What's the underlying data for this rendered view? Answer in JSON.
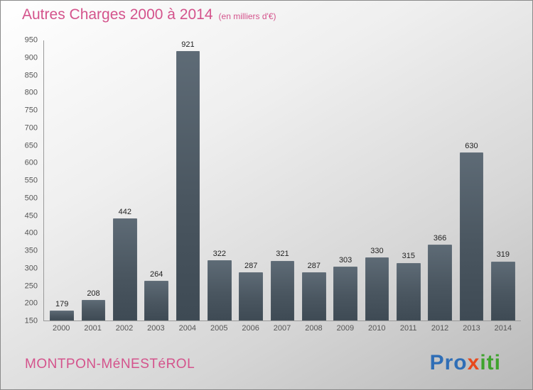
{
  "header": {
    "title": "Autres Charges 2000 à 2014",
    "subtitle": "(en milliers d'€)"
  },
  "footer": {
    "city_label": "MONTPON-MéNESTéROL",
    "logo": {
      "part1": "Pro",
      "part2": "x",
      "part3": "iti"
    }
  },
  "colors": {
    "title_pink": "#d4538c",
    "bar_top": "#5e6b76",
    "bar_bottom": "#3e4a54",
    "axis_text": "#555555",
    "logo_blue": "#2f6eb6",
    "logo_red": "#e8491d",
    "logo_green": "#3fa32e"
  },
  "chart_data": {
    "type": "bar",
    "title": "Autres Charges 2000 à 2014",
    "unit_note": "(en milliers d'€)",
    "categories": [
      "2000",
      "2001",
      "2002",
      "2003",
      "2004",
      "2005",
      "2006",
      "2007",
      "2008",
      "2009",
      "2010",
      "2011",
      "2012",
      "2013",
      "2014"
    ],
    "values": [
      179,
      208,
      442,
      264,
      921,
      322,
      287,
      321,
      287,
      303,
      330,
      315,
      366,
      630,
      319
    ],
    "xlabel": "",
    "ylabel": "",
    "ylim": [
      150,
      950
    ],
    "ytick_step": 50,
    "grid": false,
    "legend": false,
    "bar_color": "#4a5660",
    "value_labels": true
  }
}
